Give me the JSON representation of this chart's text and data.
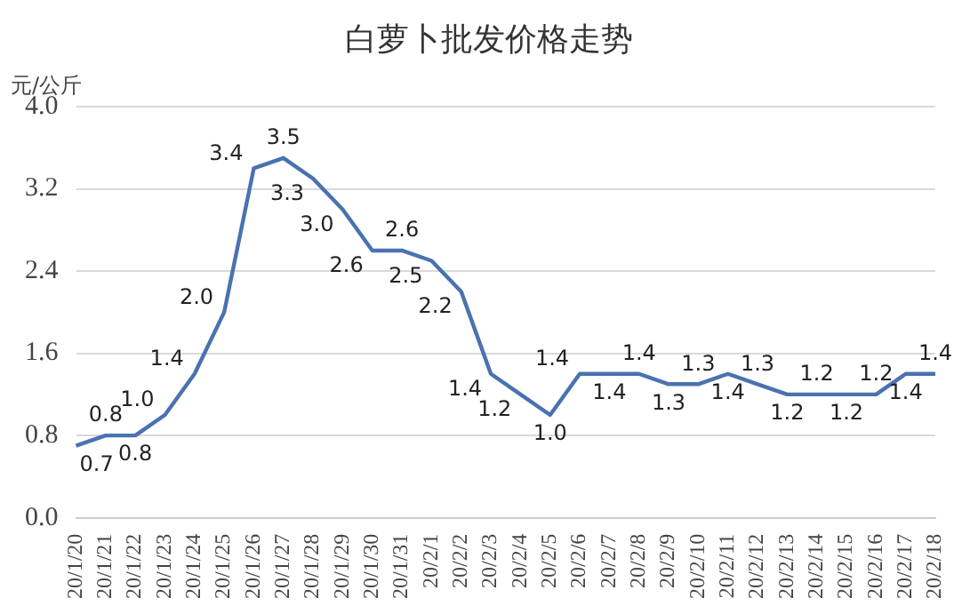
{
  "chart_data": {
    "type": "line",
    "title": "白萝卜批发价格走势",
    "ylabel": "元/公斤",
    "categories": [
      "20/1/20",
      "20/1/21",
      "20/1/22",
      "20/1/23",
      "20/1/24",
      "20/1/25",
      "20/1/26",
      "20/1/27",
      "20/1/28",
      "20/1/29",
      "20/1/30",
      "20/1/31",
      "20/2/1",
      "20/2/2",
      "20/2/3",
      "20/2/4",
      "20/2/5",
      "20/2/6",
      "20/2/7",
      "20/2/8",
      "20/2/9",
      "20/2/10",
      "20/2/11",
      "20/2/12",
      "20/2/13",
      "20/2/14",
      "20/2/15",
      "20/2/16",
      "20/2/17",
      "20/2/18"
    ],
    "series": [
      {
        "color": "#4a72b0",
        "values": [
          0.7,
          0.8,
          0.8,
          1.0,
          1.4,
          2.0,
          3.4,
          3.5,
          3.3,
          3.0,
          2.6,
          2.6,
          2.5,
          2.2,
          1.4,
          1.2,
          1.0,
          1.4,
          1.4,
          1.4,
          1.3,
          1.3,
          1.4,
          1.3,
          1.2,
          1.2,
          1.2,
          1.2,
          1.4,
          1.4
        ],
        "value_labels": [
          "0.7",
          "0.8",
          "0.8",
          "1.0",
          "1.4",
          "2.0",
          "3.4",
          "3.5",
          "3.3",
          "3.0",
          "2.6",
          "2.6",
          "2.5",
          "2.2",
          "1.4",
          "1.2",
          "1.0",
          "1.4",
          "1.4",
          "1.4",
          "1.3",
          "1.3",
          "1.4",
          "1.3",
          "1.2",
          "1.2",
          "1.2",
          "1.2",
          "1.4",
          "1.4"
        ]
      }
    ],
    "ylim": [
      0,
      4.0
    ],
    "yticks": [
      {
        "value": 0,
        "label": "0.0"
      },
      {
        "value": 0.8,
        "label": "0.8"
      },
      {
        "value": 1.6,
        "label": "1.6"
      },
      {
        "value": 2.4,
        "label": "2.4"
      },
      {
        "value": 3.2,
        "label": "3.2"
      },
      {
        "value": 4.0,
        "label": "4.0"
      }
    ],
    "grid": "y",
    "legend": false,
    "marker": "none",
    "line_style": "solid"
  }
}
